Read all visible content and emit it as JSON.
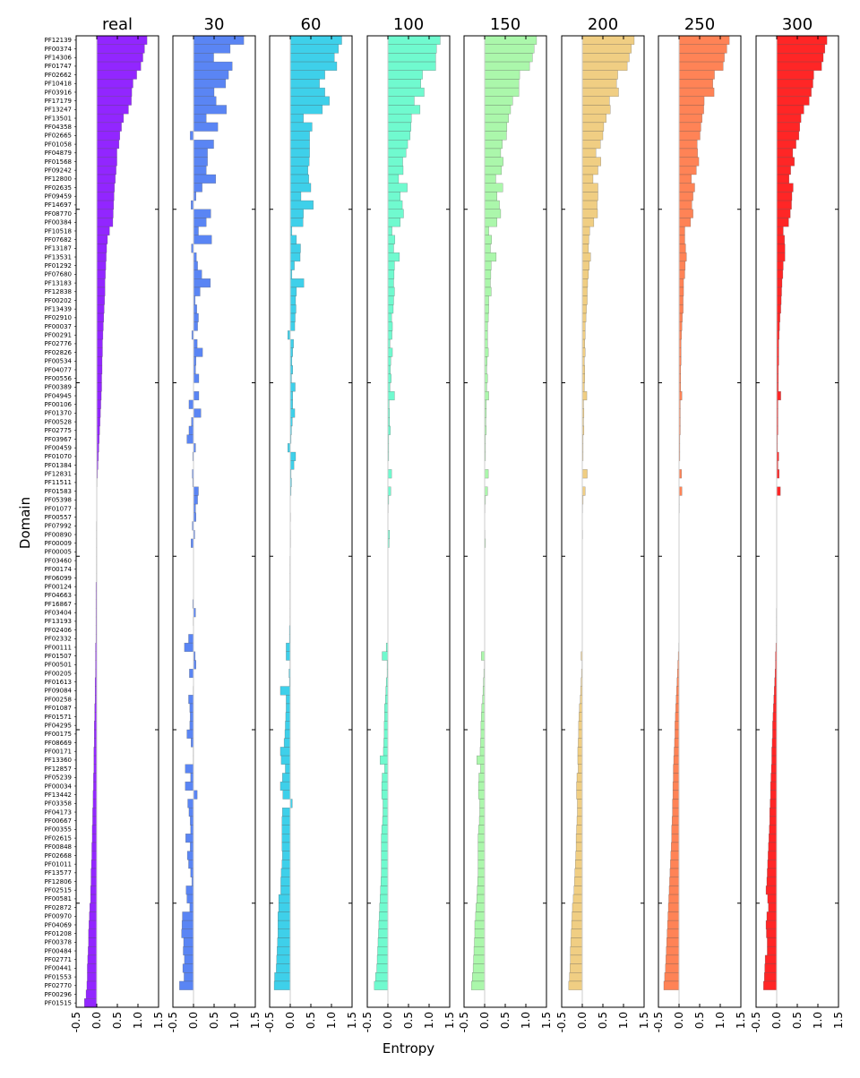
{
  "chart_data": {
    "type": "bar",
    "orientation": "horizontal",
    "xlabel": "Entropy",
    "ylabel": "Domain",
    "xlim": [
      -0.5,
      1.5
    ],
    "xticks": [
      "-0.5",
      "0.0",
      "0.5",
      "1.0",
      "1.5"
    ],
    "grid": false,
    "categories": [
      "PF12139",
      "PF00374",
      "PF14306",
      "PF01747",
      "PF02662",
      "PF10418",
      "PF03916",
      "PF17179",
      "PF13247",
      "PF13501",
      "PF04358",
      "PF02665",
      "PF01058",
      "PF04879",
      "PF01568",
      "PF09242",
      "PF12800",
      "PF02635",
      "PF09459",
      "PF14697",
      "PF08770",
      "PF00384",
      "PF10518",
      "PF07682",
      "PF13187",
      "PF13531",
      "PF01292",
      "PF07680",
      "PF13183",
      "PF12838",
      "PF00202",
      "PF13439",
      "PF02910",
      "PF00037",
      "PF00291",
      "PF02776",
      "PF02826",
      "PF00534",
      "PF04077",
      "PF00556",
      "PF00389",
      "PF04945",
      "PF00106",
      "PF01370",
      "PF00528",
      "PF02775",
      "PF03967",
      "PF00459",
      "PF01070",
      "PF01384",
      "PF12831",
      "PF11511",
      "PF01583",
      "PF05398",
      "PF01077",
      "PF00557",
      "PF07992",
      "PF00890",
      "PF00009",
      "PF00005",
      "PF03460",
      "PF00174",
      "PF06099",
      "PF00124",
      "PF04663",
      "PF16867",
      "PF03404",
      "PF13193",
      "PF02406",
      "PF02332",
      "PF00111",
      "PF01507",
      "PF00501",
      "PF00205",
      "PF01613",
      "PF09084",
      "PF00258",
      "PF01087",
      "PF01571",
      "PF04295",
      "PF00175",
      "PF08669",
      "PF00171",
      "PF13360",
      "PF12857",
      "PF05239",
      "PF00034",
      "PF13442",
      "PF03358",
      "PF04173",
      "PF00667",
      "PF00355",
      "PF02615",
      "PF00848",
      "PF02668",
      "PF01011",
      "PF13577",
      "PF12806",
      "PF02515",
      "PF00581",
      "PF02872",
      "PF00970",
      "PF04069",
      "PF01208",
      "PF00378",
      "PF00484",
      "PF02771",
      "PF00441",
      "PF01553",
      "PF02770",
      "PF00296",
      "PF01515"
    ],
    "panels": [
      {
        "title": "real",
        "color": "#7f00ff",
        "values": [
          1.22,
          1.16,
          1.12,
          1.07,
          0.97,
          0.88,
          0.85,
          0.84,
          0.77,
          0.65,
          0.6,
          0.56,
          0.54,
          0.49,
          0.49,
          0.47,
          0.45,
          0.43,
          0.42,
          0.41,
          0.4,
          0.39,
          0.31,
          0.26,
          0.24,
          0.23,
          0.22,
          0.21,
          0.2,
          0.2,
          0.19,
          0.18,
          0.17,
          0.16,
          0.15,
          0.14,
          0.14,
          0.13,
          0.13,
          0.12,
          0.12,
          0.11,
          0.1,
          0.09,
          0.08,
          0.07,
          0.06,
          0.05,
          0.04,
          0.03,
          0.02,
          0.01,
          0.0,
          0.0,
          0.0,
          0.0,
          -0.01,
          -0.01,
          -0.01,
          -0.01,
          -0.01,
          -0.01,
          -0.01,
          -0.02,
          -0.02,
          -0.02,
          -0.02,
          -0.02,
          -0.02,
          -0.02,
          -0.03,
          -0.03,
          -0.03,
          -0.03,
          -0.04,
          -0.04,
          -0.04,
          -0.05,
          -0.05,
          -0.06,
          -0.06,
          -0.06,
          -0.07,
          -0.07,
          -0.07,
          -0.08,
          -0.08,
          -0.09,
          -0.09,
          -0.1,
          -0.1,
          -0.11,
          -0.11,
          -0.12,
          -0.12,
          -0.13,
          -0.14,
          -0.14,
          -0.15,
          -0.15,
          -0.17,
          -0.18,
          -0.19,
          -0.2,
          -0.2,
          -0.21,
          -0.22,
          -0.23,
          -0.23,
          -0.24,
          -0.26,
          -0.3
        ]
      },
      {
        "title": "30",
        "color": "#3d70f2",
        "values": [
          1.22,
          0.89,
          0.49,
          0.94,
          0.85,
          0.78,
          0.5,
          0.55,
          0.8,
          0.31,
          0.59,
          -0.08,
          0.49,
          0.34,
          0.34,
          0.31,
          0.54,
          0.21,
          0.06,
          -0.06,
          0.42,
          0.31,
          0.12,
          0.44,
          -0.05,
          0.07,
          0.1,
          0.2,
          0.41,
          0.16,
          0.04,
          0.08,
          0.12,
          0.1,
          -0.04,
          0.09,
          0.22,
          0.06,
          0.05,
          0.13,
          0.0,
          0.13,
          -0.11,
          0.18,
          -0.05,
          -0.11,
          -0.16,
          0.05,
          -0.02,
          0.0,
          -0.03,
          -0.02,
          0.12,
          0.1,
          0.05,
          0.06,
          -0.03,
          0.03,
          -0.06,
          0.0,
          0.0,
          0.0,
          0.0,
          0.0,
          0.0,
          -0.02,
          0.05,
          -0.01,
          0.0,
          -0.12,
          -0.22,
          0.04,
          0.06,
          -0.1,
          0.0,
          -0.01,
          -0.12,
          -0.09,
          -0.08,
          -0.09,
          -0.16,
          -0.06,
          -0.01,
          -0.01,
          -0.2,
          -0.07,
          -0.2,
          0.09,
          -0.14,
          -0.11,
          -0.08,
          -0.07,
          -0.19,
          -0.08,
          -0.15,
          -0.12,
          -0.07,
          -0.04,
          -0.18,
          -0.16,
          -0.09,
          -0.27,
          -0.28,
          -0.29,
          -0.24,
          -0.25,
          -0.22,
          -0.26,
          -0.23,
          -0.34
        ]
      },
      {
        "title": "60",
        "color": "#1cc8e6",
        "values": [
          1.25,
          1.17,
          1.07,
          1.13,
          0.84,
          0.71,
          0.84,
          0.95,
          0.78,
          0.32,
          0.53,
          0.47,
          0.47,
          0.47,
          0.46,
          0.43,
          0.45,
          0.5,
          0.26,
          0.56,
          0.32,
          0.31,
          0.04,
          0.15,
          0.25,
          0.24,
          0.1,
          0.04,
          0.33,
          0.15,
          0.13,
          0.14,
          0.12,
          0.11,
          -0.06,
          0.08,
          0.06,
          0.04,
          0.06,
          0.03,
          0.12,
          0.06,
          0.06,
          0.11,
          0.05,
          0.03,
          0.02,
          -0.06,
          0.13,
          0.09,
          0.02,
          0.03,
          0.02,
          0.0,
          0.0,
          0.01,
          0.0,
          0.01,
          0.01,
          0.0,
          -0.01,
          -0.01,
          -0.01,
          -0.01,
          -0.01,
          -0.01,
          -0.01,
          -0.01,
          -0.02,
          -0.02,
          -0.1,
          -0.1,
          -0.01,
          -0.03,
          -0.02,
          -0.24,
          -0.1,
          -0.1,
          -0.11,
          -0.12,
          -0.13,
          -0.15,
          -0.24,
          -0.22,
          -0.12,
          -0.19,
          -0.24,
          -0.18,
          0.05,
          -0.19,
          -0.2,
          -0.2,
          -0.2,
          -0.2,
          -0.19,
          -0.2,
          -0.22,
          -0.23,
          -0.23,
          -0.28,
          -0.28,
          -0.3,
          -0.3,
          -0.3,
          -0.31,
          -0.32,
          -0.33,
          -0.34,
          -0.38,
          -0.39
        ]
      },
      {
        "title": "100",
        "color": "#57f9c7",
        "values": [
          1.27,
          1.18,
          1.16,
          1.16,
          0.84,
          0.8,
          0.88,
          0.64,
          0.78,
          0.57,
          0.56,
          0.54,
          0.48,
          0.44,
          0.36,
          0.37,
          0.26,
          0.47,
          0.3,
          0.35,
          0.38,
          0.3,
          0.1,
          0.17,
          0.14,
          0.28,
          0.16,
          0.15,
          0.14,
          0.16,
          0.14,
          0.13,
          0.09,
          0.11,
          0.1,
          0.05,
          0.11,
          0.07,
          0.06,
          0.08,
          0.05,
          0.16,
          0.03,
          0.04,
          0.04,
          0.06,
          0.02,
          0.02,
          0.02,
          0.0,
          0.09,
          0.0,
          0.07,
          0.02,
          0.01,
          0.0,
          0.0,
          0.04,
          0.03,
          0.0,
          0.0,
          0.0,
          0.0,
          0.0,
          0.0,
          0.0,
          0.0,
          0.0,
          0.0,
          0.0,
          -0.04,
          -0.14,
          -0.02,
          -0.02,
          -0.04,
          -0.05,
          -0.06,
          -0.08,
          -0.08,
          -0.09,
          -0.09,
          -0.1,
          -0.11,
          -0.19,
          -0.08,
          -0.14,
          -0.15,
          -0.15,
          -0.12,
          -0.12,
          -0.13,
          -0.15,
          -0.16,
          -0.16,
          -0.16,
          -0.16,
          -0.16,
          -0.17,
          -0.18,
          -0.19,
          -0.2,
          -0.21,
          -0.22,
          -0.23,
          -0.24,
          -0.25,
          -0.26,
          -0.27,
          -0.3,
          -0.33
        ]
      },
      {
        "title": "150",
        "color": "#9cf69c",
        "values": [
          1.26,
          1.2,
          1.16,
          1.09,
          0.85,
          0.83,
          0.83,
          0.68,
          0.63,
          0.58,
          0.54,
          0.53,
          0.43,
          0.39,
          0.45,
          0.41,
          0.27,
          0.44,
          0.3,
          0.36,
          0.39,
          0.3,
          0.1,
          0.17,
          0.14,
          0.28,
          0.16,
          0.15,
          0.14,
          0.16,
          0.1,
          0.1,
          0.09,
          0.07,
          0.07,
          0.07,
          0.09,
          0.06,
          0.05,
          0.07,
          0.05,
          0.1,
          0.04,
          0.04,
          0.03,
          0.04,
          0.02,
          0.02,
          0.02,
          0.0,
          0.09,
          0.0,
          0.07,
          0.02,
          0.01,
          0.0,
          0.0,
          0.01,
          0.02,
          0.0,
          0.0,
          0.0,
          0.0,
          0.0,
          0.0,
          0.0,
          0.0,
          0.0,
          0.0,
          0.0,
          0.0,
          -0.08,
          -0.01,
          -0.02,
          -0.03,
          -0.04,
          -0.05,
          -0.07,
          -0.08,
          -0.09,
          -0.09,
          -0.1,
          -0.11,
          -0.19,
          -0.1,
          -0.14,
          -0.15,
          -0.15,
          -0.12,
          -0.12,
          -0.13,
          -0.15,
          -0.16,
          -0.16,
          -0.16,
          -0.16,
          -0.16,
          -0.17,
          -0.18,
          -0.19,
          -0.21,
          -0.22,
          -0.24,
          -0.24,
          -0.25,
          -0.26,
          -0.27,
          -0.28,
          -0.3,
          -0.32
        ]
      },
      {
        "title": "200",
        "color": "#edc66d",
        "values": [
          1.26,
          1.19,
          1.14,
          1.09,
          0.86,
          0.83,
          0.88,
          0.66,
          0.68,
          0.58,
          0.52,
          0.5,
          0.44,
          0.33,
          0.45,
          0.38,
          0.26,
          0.38,
          0.38,
          0.36,
          0.37,
          0.28,
          0.18,
          0.16,
          0.15,
          0.2,
          0.17,
          0.15,
          0.13,
          0.12,
          0.12,
          0.1,
          0.09,
          0.07,
          0.07,
          0.06,
          0.07,
          0.05,
          0.06,
          0.06,
          0.05,
          0.11,
          0.03,
          0.04,
          0.03,
          0.04,
          0.02,
          0.02,
          0.02,
          0.0,
          0.12,
          0.0,
          0.07,
          0.02,
          0.01,
          0.0,
          0.0,
          0.01,
          0.0,
          0.0,
          0.0,
          0.0,
          0.0,
          0.0,
          0.0,
          0.0,
          0.0,
          0.0,
          0.0,
          0.0,
          0.0,
          -0.03,
          -0.01,
          -0.02,
          -0.03,
          -0.04,
          -0.05,
          -0.07,
          -0.08,
          -0.09,
          -0.09,
          -0.1,
          -0.11,
          -0.11,
          -0.1,
          -0.13,
          -0.14,
          -0.14,
          -0.12,
          -0.12,
          -0.13,
          -0.14,
          -0.15,
          -0.15,
          -0.16,
          -0.17,
          -0.18,
          -0.19,
          -0.2,
          -0.22,
          -0.24,
          -0.25,
          -0.26,
          -0.27,
          -0.28,
          -0.29,
          -0.29,
          -0.3,
          -0.31,
          -0.33
        ]
      },
      {
        "title": "250",
        "color": "#ff6d38",
        "values": [
          1.22,
          1.16,
          1.1,
          1.07,
          0.86,
          0.82,
          0.85,
          0.61,
          0.6,
          0.56,
          0.53,
          0.51,
          0.44,
          0.45,
          0.48,
          0.42,
          0.3,
          0.38,
          0.34,
          0.31,
          0.34,
          0.28,
          0.14,
          0.14,
          0.16,
          0.18,
          0.15,
          0.14,
          0.11,
          0.11,
          0.1,
          0.1,
          0.08,
          0.07,
          0.06,
          0.05,
          0.05,
          0.05,
          0.04,
          0.04,
          0.04,
          0.07,
          0.03,
          0.03,
          0.03,
          0.03,
          0.02,
          0.02,
          0.02,
          0.0,
          0.06,
          0.0,
          0.07,
          0.01,
          0.01,
          0.0,
          0.0,
          0.0,
          0.0,
          0.0,
          0.0,
          0.0,
          0.0,
          0.0,
          0.0,
          0.0,
          0.0,
          0.0,
          0.0,
          0.0,
          -0.01,
          -0.02,
          -0.03,
          -0.04,
          -0.05,
          -0.06,
          -0.07,
          -0.08,
          -0.09,
          -0.1,
          -0.1,
          -0.11,
          -0.12,
          -0.13,
          -0.14,
          -0.14,
          -0.15,
          -0.15,
          -0.16,
          -0.16,
          -0.17,
          -0.18,
          -0.18,
          -0.19,
          -0.2,
          -0.21,
          -0.22,
          -0.23,
          -0.24,
          -0.25,
          -0.26,
          -0.27,
          -0.28,
          -0.29,
          -0.3,
          -0.31,
          -0.32,
          -0.33,
          -0.35,
          -0.37
        ]
      },
      {
        "title": "300",
        "color": "#ff0000",
        "values": [
          1.22,
          1.17,
          1.13,
          1.09,
          0.9,
          0.88,
          0.84,
          0.79,
          0.66,
          0.59,
          0.56,
          0.54,
          0.47,
          0.39,
          0.43,
          0.34,
          0.3,
          0.4,
          0.37,
          0.36,
          0.33,
          0.29,
          0.16,
          0.19,
          0.2,
          0.2,
          0.16,
          0.15,
          0.13,
          0.12,
          0.11,
          0.1,
          0.08,
          0.07,
          0.06,
          0.05,
          0.05,
          0.05,
          0.04,
          0.04,
          0.04,
          0.1,
          0.03,
          0.03,
          0.03,
          0.03,
          0.02,
          0.02,
          0.05,
          0.03,
          0.06,
          0.0,
          0.09,
          0.0,
          0.0,
          0.0,
          0.0,
          0.0,
          0.0,
          0.0,
          0.0,
          0.0,
          0.0,
          0.0,
          0.0,
          0.0,
          -0.01,
          -0.01,
          -0.01,
          -0.01,
          -0.02,
          -0.03,
          -0.03,
          -0.04,
          -0.05,
          -0.06,
          -0.07,
          -0.08,
          -0.09,
          -0.1,
          -0.1,
          -0.11,
          -0.12,
          -0.12,
          -0.13,
          -0.14,
          -0.15,
          -0.15,
          -0.16,
          -0.17,
          -0.17,
          -0.18,
          -0.19,
          -0.2,
          -0.21,
          -0.22,
          -0.23,
          -0.24,
          -0.26,
          -0.22,
          -0.2,
          -0.24,
          -0.26,
          -0.25,
          -0.23,
          -0.23,
          -0.28,
          -0.29,
          -0.3,
          -0.32
        ]
      }
    ]
  }
}
